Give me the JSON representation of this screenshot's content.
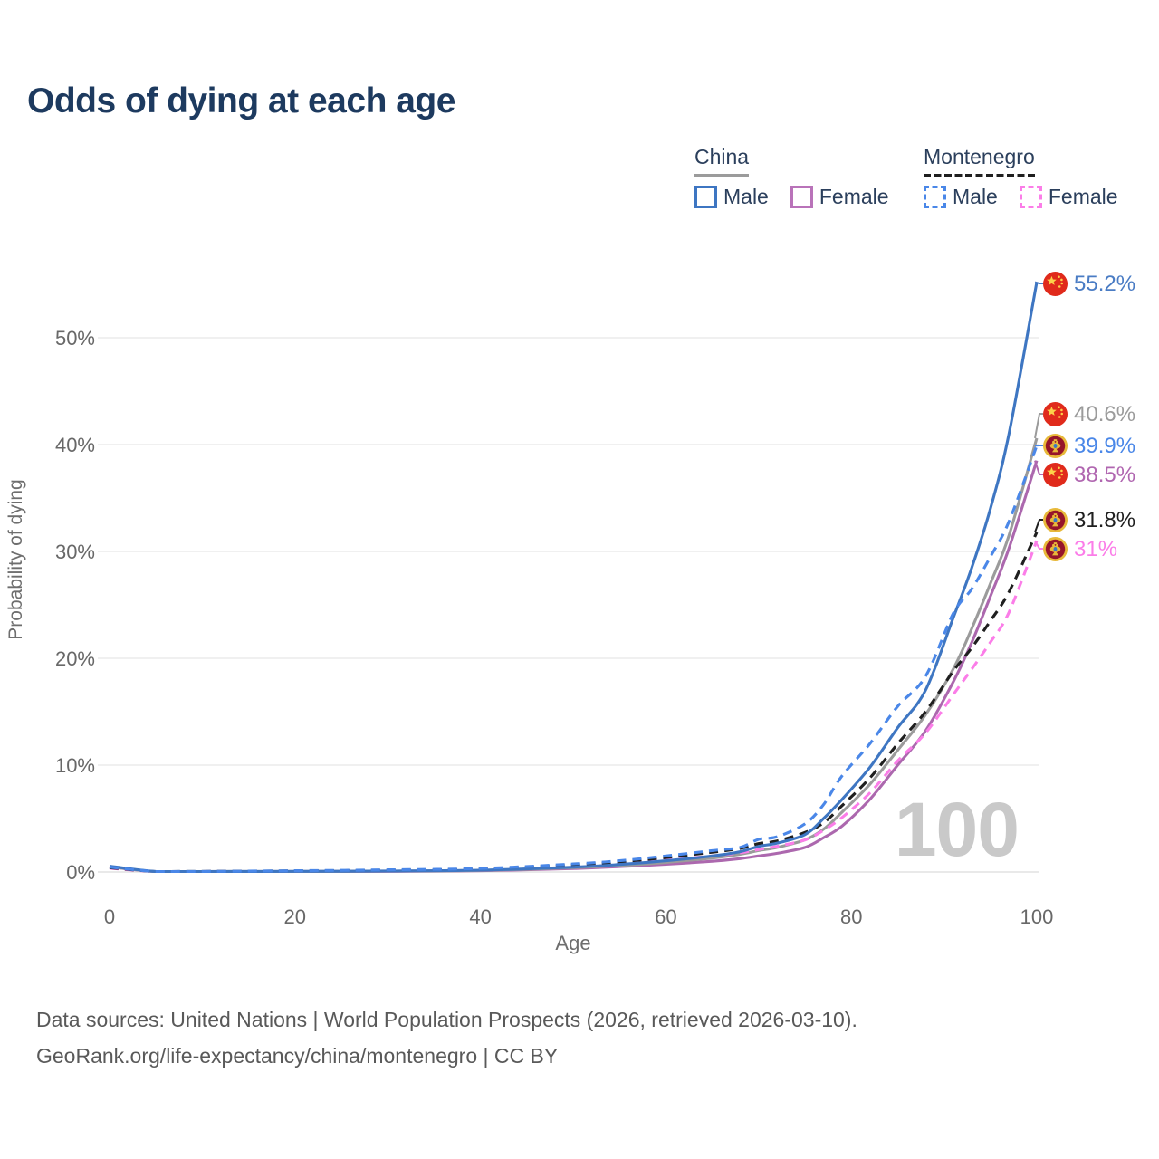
{
  "title": "Odds of dying at each age",
  "legend": {
    "groups": [
      {
        "label": "China",
        "underline_color": "#9b9b9b",
        "underline_style": "solid",
        "items": [
          {
            "label": "Male",
            "color": "#3e76c2",
            "style": "solid"
          },
          {
            "label": "Female",
            "color": "#b973b9",
            "style": "solid"
          }
        ]
      },
      {
        "label": "Montenegro",
        "underline_color": "#1f1f1f",
        "underline_style": "dashed",
        "items": [
          {
            "label": "Male",
            "color": "#4a87e8",
            "style": "dashed"
          },
          {
            "label": "Female",
            "color": "#fb7de8",
            "style": "dashed"
          }
        ]
      }
    ]
  },
  "watermark": "100",
  "chart_data": {
    "type": "line",
    "title": "Odds of dying at each age",
    "xlabel": "Age",
    "ylabel": "Probability of dying",
    "xlim": [
      0,
      100
    ],
    "ylim": [
      0,
      57
    ],
    "x_ticks": [
      0,
      20,
      40,
      60,
      80,
      100
    ],
    "y_ticks": [
      {
        "v": 0,
        "label": "0%"
      },
      {
        "v": 10,
        "label": "10%"
      },
      {
        "v": 20,
        "label": "20%"
      },
      {
        "v": 30,
        "label": "30%"
      },
      {
        "v": 40,
        "label": "40%"
      },
      {
        "v": 50,
        "label": "50%"
      }
    ],
    "grid": "horizontal",
    "legend_position": "top-right",
    "x": [
      0,
      5,
      10,
      20,
      30,
      40,
      50,
      55,
      60,
      65,
      68,
      70,
      72,
      75,
      77,
      79,
      82,
      85,
      88,
      91,
      93,
      95,
      97,
      100
    ],
    "series": [
      {
        "name": "China Female",
        "country": "china",
        "sex": "female",
        "color": "#ac68ae",
        "dash": "solid",
        "end_label": "38.5%",
        "values": [
          0.48,
          0.02,
          0.02,
          0.04,
          0.06,
          0.12,
          0.32,
          0.5,
          0.72,
          1.0,
          1.25,
          1.5,
          1.75,
          2.3,
          3.2,
          4.3,
          6.8,
          10.0,
          13.2,
          17.8,
          21.5,
          25.8,
          30.3,
          38.5
        ]
      },
      {
        "name": "China Total",
        "country": "china",
        "sex": "total",
        "color": "#9b9b9b",
        "dash": "solid",
        "end_label": "40.6%",
        "values": [
          0.5,
          0.03,
          0.03,
          0.05,
          0.08,
          0.15,
          0.4,
          0.6,
          0.9,
          1.3,
          1.65,
          2.0,
          2.3,
          3.0,
          4.0,
          5.6,
          8.2,
          11.4,
          14.7,
          19.0,
          22.8,
          27.0,
          31.5,
          40.6
        ]
      },
      {
        "name": "Montenegro Female",
        "country": "montenegro",
        "sex": "female",
        "color": "#fb7de8",
        "dash": "dashed",
        "end_label": "31%",
        "values": [
          0.35,
          0.03,
          0.04,
          0.08,
          0.12,
          0.22,
          0.5,
          0.75,
          1.1,
          1.5,
          1.8,
          2.1,
          2.4,
          3.0,
          3.9,
          5.1,
          7.4,
          10.4,
          13.0,
          16.6,
          19.0,
          21.5,
          24.3,
          31.0
        ]
      },
      {
        "name": "Montenegro Total",
        "country": "montenegro",
        "sex": "total",
        "color": "#1f1f1f",
        "dash": "dashed",
        "end_label": "31.8%",
        "values": [
          0.4,
          0.04,
          0.05,
          0.1,
          0.16,
          0.28,
          0.65,
          0.95,
          1.35,
          1.85,
          2.2,
          2.65,
          2.9,
          3.7,
          4.6,
          6.2,
          8.8,
          12.0,
          15.0,
          18.8,
          21.0,
          23.5,
          26.2,
          31.8
        ]
      },
      {
        "name": "China Male",
        "country": "china",
        "sex": "male",
        "color": "#3e76c2",
        "dash": "solid",
        "end_label": "55.2%",
        "values": [
          0.55,
          0.03,
          0.03,
          0.06,
          0.09,
          0.17,
          0.45,
          0.7,
          1.05,
          1.5,
          1.9,
          2.4,
          2.7,
          3.5,
          5.0,
          6.8,
          9.8,
          13.5,
          17.0,
          23.8,
          28.5,
          34.0,
          41.0,
          55.2
        ]
      },
      {
        "name": "Montenegro Male",
        "country": "montenegro",
        "sex": "male",
        "color": "#4a87e8",
        "dash": "dashed",
        "end_label": "39.9%",
        "values": [
          0.45,
          0.04,
          0.05,
          0.12,
          0.2,
          0.33,
          0.75,
          1.05,
          1.5,
          2.0,
          2.3,
          3.05,
          3.3,
          4.5,
          6.3,
          9.0,
          12.0,
          15.5,
          18.3,
          24.2,
          26.5,
          29.5,
          32.8,
          39.9
        ]
      }
    ],
    "end_labels": [
      {
        "text": "55.2%",
        "value": 55.2,
        "flag": "china",
        "color": "#4a7cc4"
      },
      {
        "text": "40.6%",
        "value": 40.6,
        "flag": "china",
        "color": "#9b9b9b"
      },
      {
        "text": "39.9%",
        "value": 39.9,
        "flag": "montenegro",
        "color": "#4a87e8"
      },
      {
        "text": "38.5%",
        "value": 38.5,
        "flag": "china",
        "color": "#b066b0"
      },
      {
        "text": "31.8%",
        "value": 31.8,
        "flag": "montenegro",
        "color": "#1f1f1f"
      },
      {
        "text": "31%",
        "value": 31.0,
        "flag": "montenegro",
        "color": "#fb7de8"
      }
    ]
  },
  "footer": {
    "line1": "Data sources: United Nations | World Population Prospects (2026, retrieved 2026-03-10).",
    "line2": "GeoRank.org/life-expectancy/china/montenegro | CC BY"
  }
}
